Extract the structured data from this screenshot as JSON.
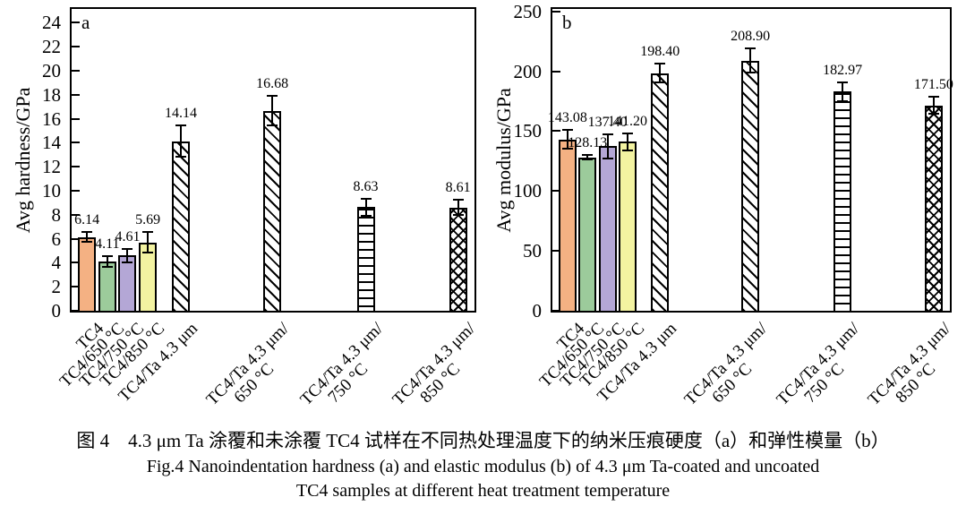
{
  "figure_caption": {
    "cn": "图 4　4.3 μm Ta 涂覆和未涂覆 TC4 试样在不同热处理温度下的纳米压痕硬度（a）和弹性模量（b）",
    "en1": "Fig.4 Nanoindentation hardness (a) and elastic modulus (b) of 4.3 μm Ta-coated and uncoated",
    "en2": "TC4 samples at different heat treatment temperature"
  },
  "colors": {
    "orange": "#F4B183",
    "green": "#9CCB9B",
    "purple": "#B4A7D6",
    "yellow": "#F3F3A1",
    "ink": "#000000",
    "background": "#FFFFFF"
  },
  "chart_data": [
    {
      "type": "bar",
      "panel": "a",
      "title": "",
      "xlabel": "",
      "ylabel": "Avg hardness/GPa",
      "ylim": [
        0,
        25.3
      ],
      "yticks": [
        0,
        2,
        4,
        6,
        8,
        10,
        12,
        14,
        16,
        18,
        20,
        22,
        24
      ],
      "grid": false,
      "legend": "none",
      "categories": [
        {
          "lines": [
            "TC4"
          ]
        },
        {
          "lines": [
            "TC4/650 °C"
          ]
        },
        {
          "lines": [
            "TC4/750 °C"
          ]
        },
        {
          "lines": [
            "TC4/850 °C"
          ]
        },
        {
          "lines": [
            "TC4/Ta 4.3 μm"
          ]
        },
        {
          "lines": [
            "TC4/Ta 4.3 μm/",
            "650 °C"
          ]
        },
        {
          "lines": [
            "TC4/Ta 4.3 μm/",
            "750 °C"
          ]
        },
        {
          "lines": [
            "TC4/Ta 4.3 μm/",
            "850 °C"
          ]
        }
      ],
      "values": [
        6.14,
        4.11,
        4.61,
        5.69,
        14.14,
        16.68,
        8.63,
        8.61
      ],
      "errors": [
        0.42,
        0.45,
        0.55,
        0.85,
        1.3,
        1.2,
        0.72,
        0.65
      ],
      "value_labels": [
        "6.14",
        "4.11",
        "4.61",
        "5.69",
        "14.14",
        "16.68",
        "8.63",
        "8.61"
      ],
      "bar_styles": [
        "orange",
        "green",
        "purple",
        "yellow",
        "diag",
        "diag",
        "hlines",
        "cross"
      ]
    },
    {
      "type": "bar",
      "panel": "b",
      "title": "",
      "xlabel": "",
      "ylabel": "Avg modulus/GPa",
      "ylim": [
        0,
        253.5
      ],
      "yticks": [
        0,
        50,
        100,
        150,
        200,
        250
      ],
      "grid": false,
      "legend": "none",
      "categories": [
        {
          "lines": [
            "TC4"
          ]
        },
        {
          "lines": [
            "TC4/650 °C"
          ]
        },
        {
          "lines": [
            "TC4/750 °C"
          ]
        },
        {
          "lines": [
            "TC4/850 °C"
          ]
        },
        {
          "lines": [
            "TC4/Ta 4.3 μm"
          ]
        },
        {
          "lines": [
            "TC4/Ta 4.3 μm/",
            "650 °C"
          ]
        },
        {
          "lines": [
            "TC4/Ta 4.3 μm/",
            "750 °C"
          ]
        },
        {
          "lines": [
            "TC4/Ta 4.3 μm/",
            "850 °C"
          ]
        }
      ],
      "values": [
        143.08,
        128.13,
        137.4,
        141.2,
        198.4,
        208.9,
        182.97,
        171.5
      ],
      "errors": [
        8,
        2,
        10,
        7,
        8,
        10,
        8,
        7
      ],
      "value_labels": [
        "143.08",
        "128.13",
        "137.40",
        "141.20",
        "198.40",
        "208.90",
        "182.97",
        "171.50"
      ],
      "bar_styles": [
        "orange",
        "green",
        "purple",
        "yellow",
        "diag",
        "diag",
        "hlines",
        "cross"
      ]
    }
  ]
}
